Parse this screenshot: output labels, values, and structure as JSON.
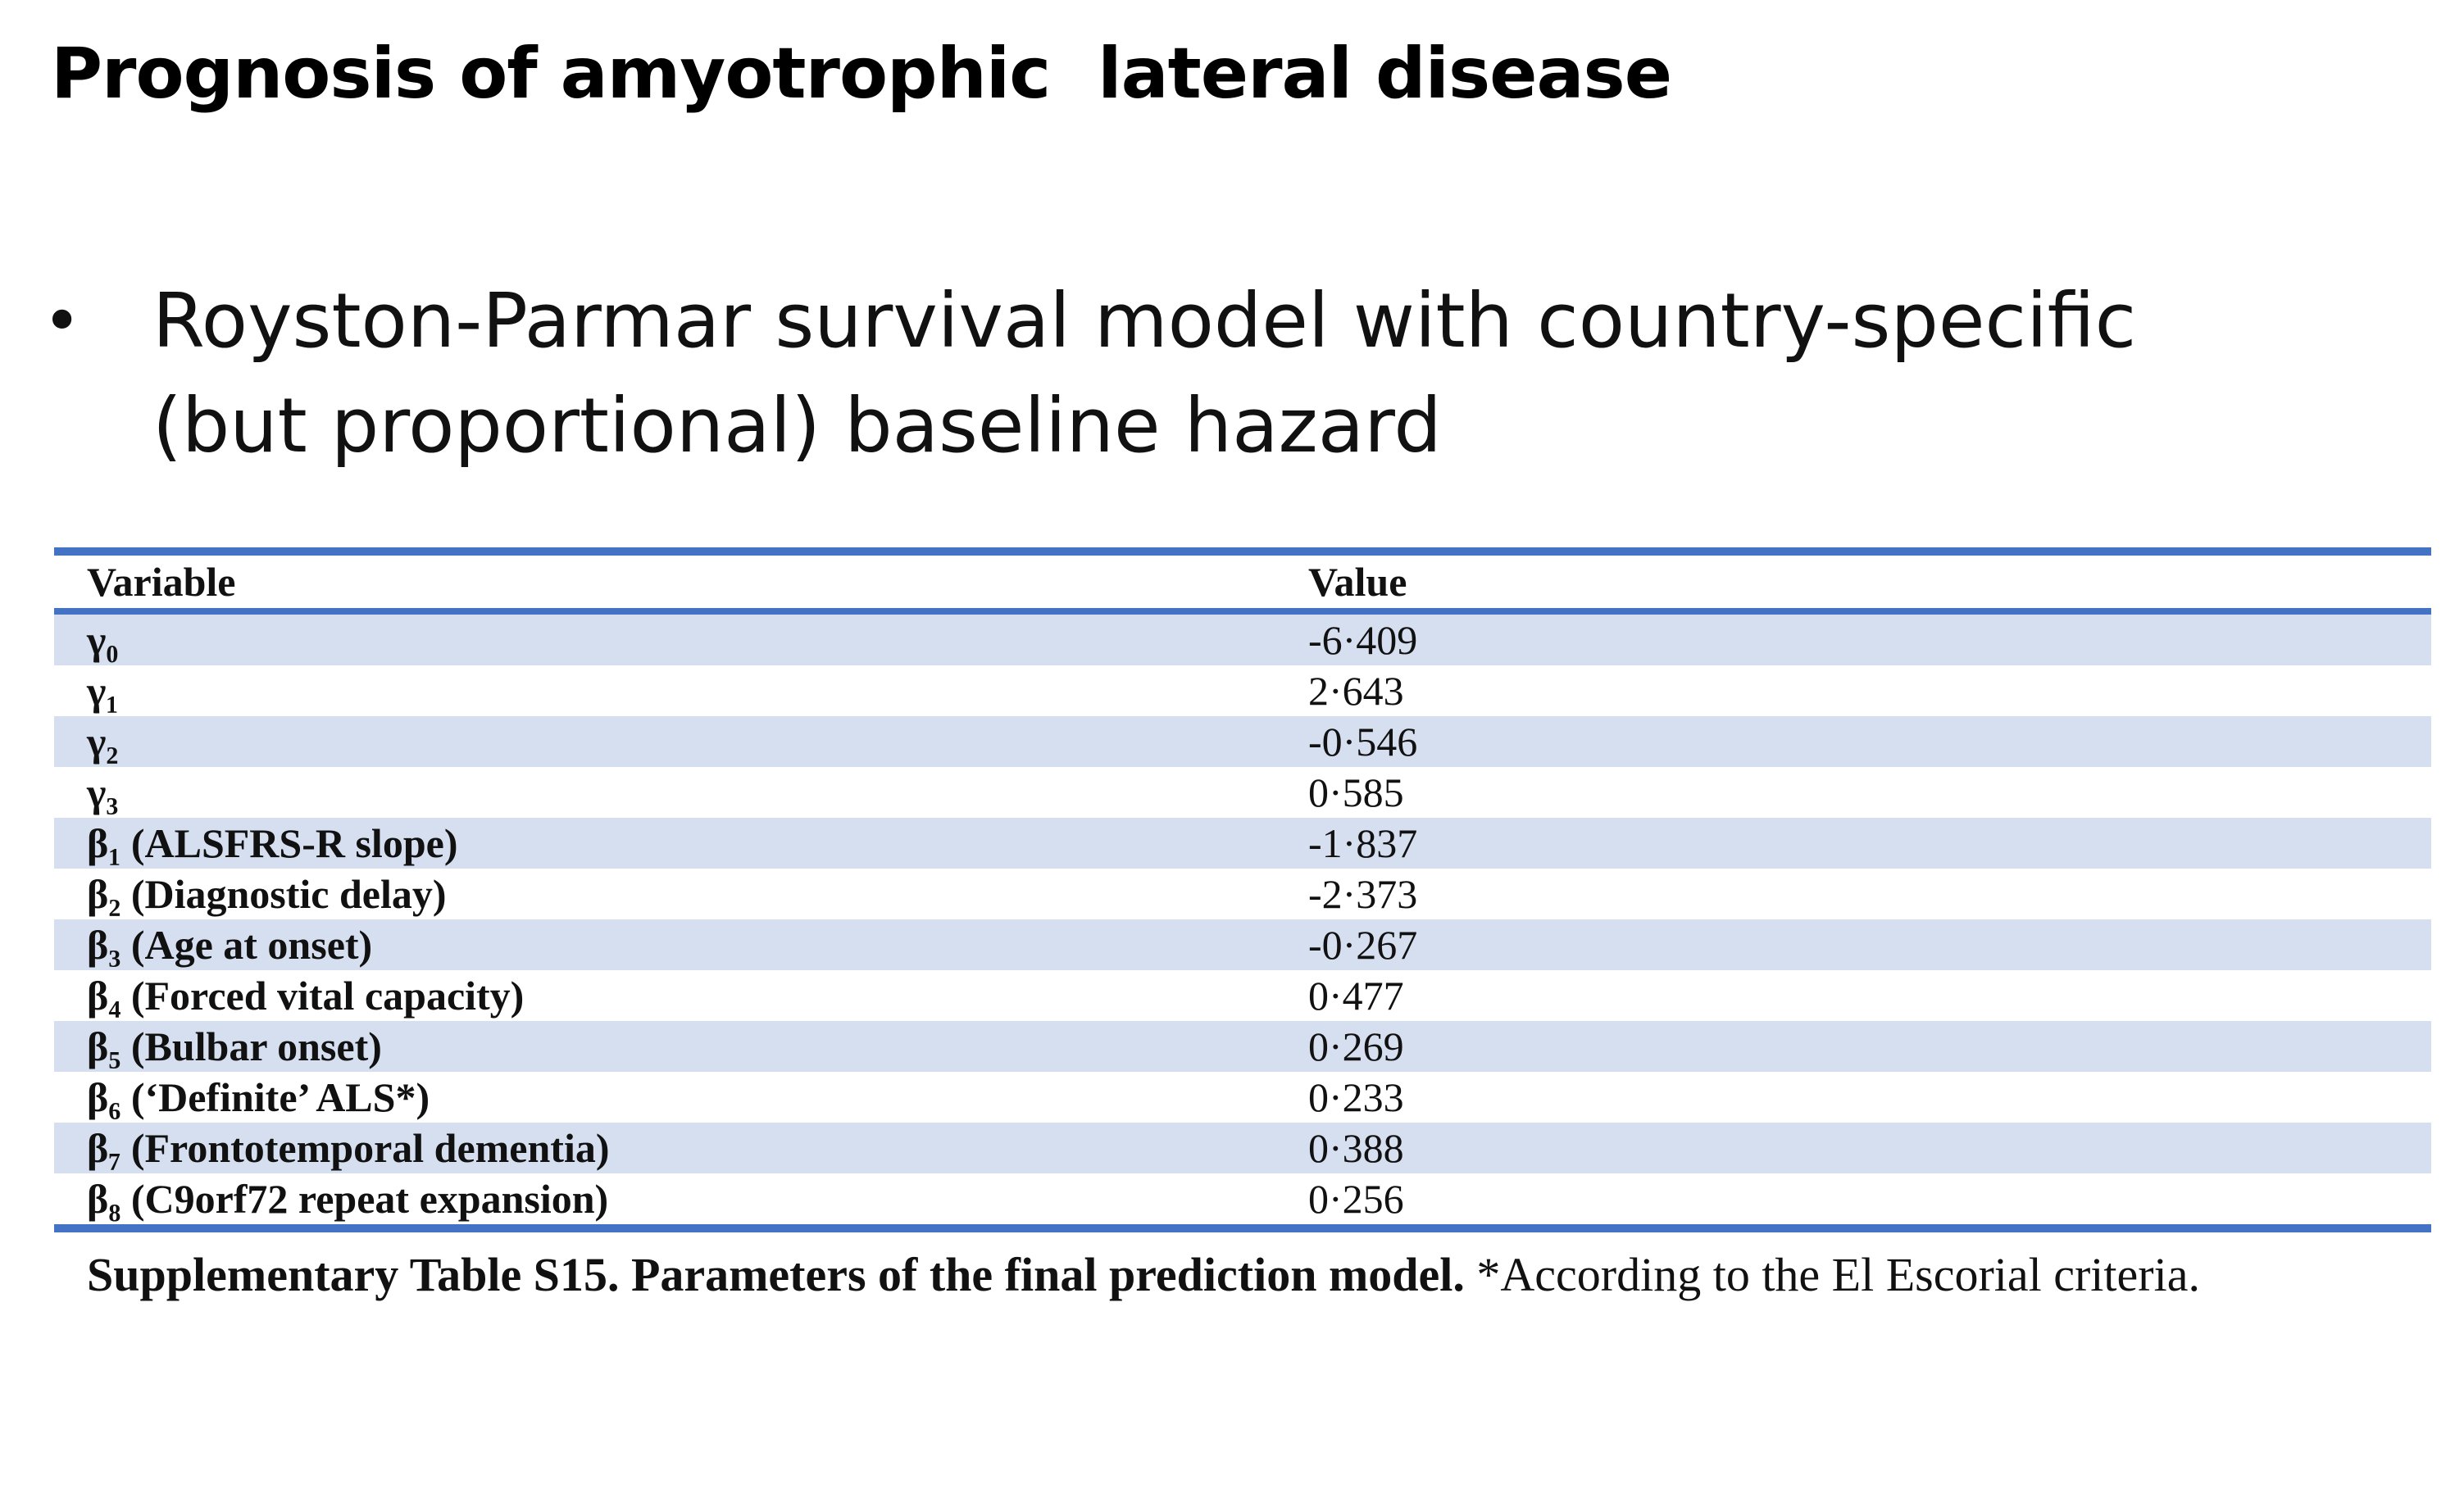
{
  "slide": {
    "title": "Prognosis of amyotrophic  lateral disease",
    "bullet": {
      "line1": "Royston-Parmar survival model with country-specific",
      "line2": "(but proportional) baseline hazard"
    }
  },
  "table": {
    "headers": {
      "variable": "Variable",
      "value": "Value"
    },
    "rows": [
      {
        "variable": "γ₀",
        "value": "-6·409"
      },
      {
        "variable": "γ₁",
        "value": "2·643"
      },
      {
        "variable": "γ₂",
        "value": "-0·546"
      },
      {
        "variable": "γ₃",
        "value": "0·585"
      },
      {
        "variable": "β₁ (ALSFRS-R slope)",
        "value": "-1·837"
      },
      {
        "variable": "β₂ (Diagnostic delay)",
        "value": "-2·373"
      },
      {
        "variable": "β₃ (Age at onset)",
        "value": "-0·267"
      },
      {
        "variable": "β₄ (Forced vital capacity)",
        "value": "0·477"
      },
      {
        "variable": "β₅ (Bulbar onset)",
        "value": "0·269"
      },
      {
        "variable": "β₆ (‘Definite’ ALS*)",
        "value": "0·233"
      },
      {
        "variable": "β₇ (Frontotemporal dementia)",
        "value": "0·388"
      },
      {
        "variable": "β₈ (C9orf72 repeat expansion)",
        "value": "0·256"
      }
    ],
    "caption": {
      "bold": "Supplementary Table S15. Parameters of the final prediction model.",
      "normal": " *According to the El Escorial criteria."
    }
  },
  "colors": {
    "rule": "#4472c4",
    "shading": "#d6dff0"
  }
}
